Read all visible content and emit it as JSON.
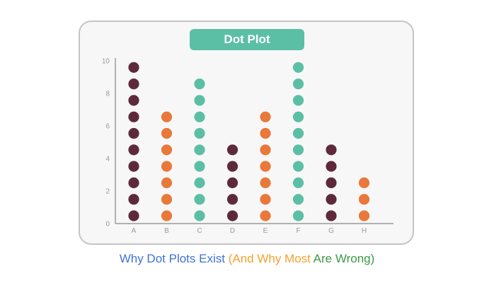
{
  "chart_data": {
    "type": "scatter",
    "title": "Dot Plot",
    "categories": [
      "A",
      "B",
      "C",
      "D",
      "E",
      "F",
      "G",
      "H"
    ],
    "counts": [
      10,
      7,
      9,
      5,
      7,
      10,
      5,
      3
    ],
    "colors": [
      "#5e2a3b",
      "#e8793a",
      "#5bbfa6",
      "#5e2a3b",
      "#e8793a",
      "#5bbfa6",
      "#5e2a3b",
      "#e8793a"
    ],
    "yticks": [
      "0",
      "2",
      "4",
      "6",
      "8",
      "10"
    ],
    "ylim": [
      0,
      10
    ],
    "xlabel": "",
    "ylabel": "",
    "grid": false
  },
  "caption": {
    "part1": "Why Dot Plots Exist ",
    "part2": "(And Why Most ",
    "part3": "Are Wrong)"
  },
  "colors": {
    "title_bg": "#5bbfa6",
    "card_bg": "#f7f7f7",
    "caption_blue": "#3f73d6",
    "caption_orange": "#f2a22f",
    "caption_green": "#3a9a45"
  }
}
